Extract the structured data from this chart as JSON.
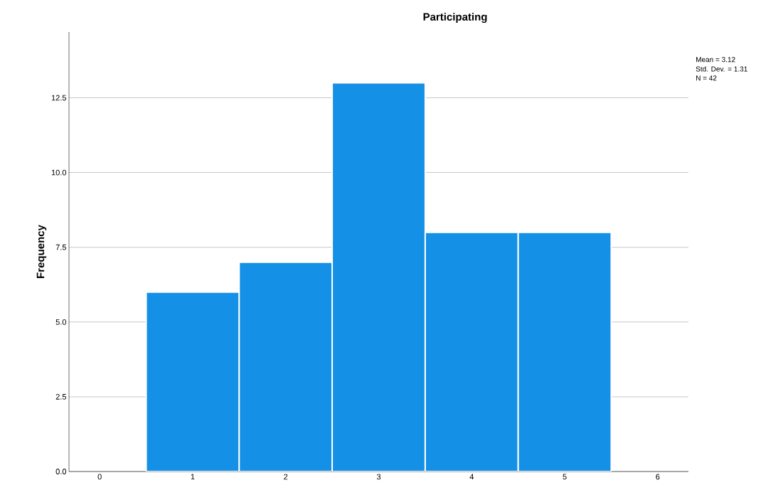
{
  "chart_data": {
    "type": "histogram",
    "title": "Participating",
    "ylabel": "Frequency",
    "bins": [
      0.5,
      1.5,
      2.5,
      3.5,
      4.5,
      5.5
    ],
    "values": [
      6,
      7,
      13,
      8,
      8
    ],
    "color": "#1490e6",
    "xlim": [
      -0.33,
      6.33
    ],
    "xticks": [
      0,
      1,
      2,
      3,
      4,
      5,
      6
    ],
    "ylim": [
      0,
      14.7
    ],
    "yticks": [
      {
        "value": 0,
        "label": "0.0"
      },
      2.5,
      {
        "value": 5,
        "label": "5.0"
      },
      7.5,
      {
        "value": 10,
        "label": "10.0"
      },
      12.5
    ],
    "grid": "y",
    "annotations": [
      "Mean = 3.12",
      "Std. Dev. = 1.31",
      "N = 42"
    ]
  }
}
